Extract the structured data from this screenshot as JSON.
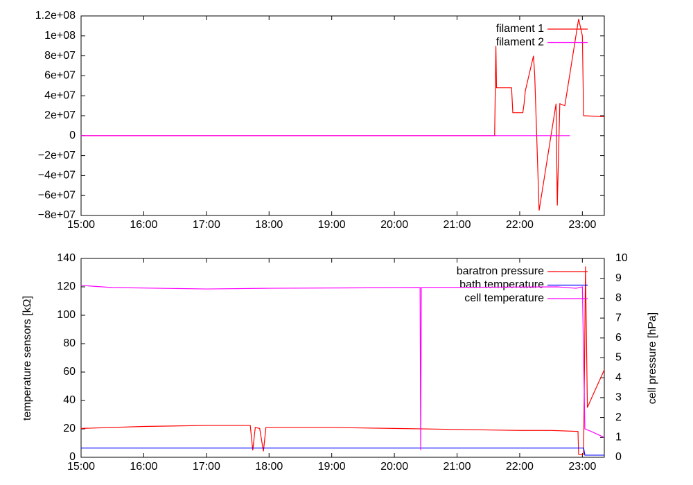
{
  "chart_data": [
    {
      "type": "line",
      "xlim": [
        15,
        23.35
      ],
      "xticks": [
        {
          "value": 15,
          "label": "15:00"
        },
        {
          "value": 16,
          "label": "16:00"
        },
        {
          "value": 17,
          "label": "17:00"
        },
        {
          "value": 18,
          "label": "18:00"
        },
        {
          "value": 19,
          "label": "19:00"
        },
        {
          "value": 20,
          "label": "20:00"
        },
        {
          "value": 21,
          "label": "21:00"
        },
        {
          "value": 22,
          "label": "22:00"
        },
        {
          "value": 23,
          "label": "23:00"
        }
      ],
      "ylim": [
        -80000000,
        120000000
      ],
      "yticks": [
        {
          "value": -80000000,
          "label": "−8e+07"
        },
        {
          "value": -60000000,
          "label": "−6e+07"
        },
        {
          "value": -40000000,
          "label": "−4e+07"
        },
        {
          "value": -20000000,
          "label": "−2e+07"
        },
        0,
        {
          "value": 20000000,
          "label": "2e+07"
        },
        {
          "value": 40000000,
          "label": "4e+07"
        },
        {
          "value": 60000000,
          "label": "6e+07"
        },
        {
          "value": 80000000,
          "label": "8e+07"
        },
        {
          "value": 100000000,
          "label": "1e+08"
        },
        {
          "value": 120000000,
          "label": "1.2e+08"
        }
      ],
      "legend": "upper right",
      "series": [
        {
          "name": "filament 1",
          "color": "#ff0000",
          "x": [
            15,
            21.6,
            21.62,
            21.63,
            21.65,
            21.87,
            21.89,
            22.05,
            22.07,
            22.09,
            22.22,
            22.24,
            22.31,
            22.58,
            22.6,
            22.64,
            22.72,
            22.94,
            23.0,
            23.02,
            23.35
          ],
          "values": [
            0,
            0,
            90000000,
            48000000,
            48000000,
            48000000,
            23000000,
            23000000,
            32000000,
            45000000,
            80000000,
            60000000,
            -75000000,
            32000000,
            -70000000,
            32000000,
            30000000,
            117000000,
            100000000,
            20000000,
            19000000
          ]
        },
        {
          "name": "filament 2",
          "color": "#ff00ff",
          "x": [
            15,
            22.8
          ],
          "values": [
            0,
            0
          ]
        }
      ]
    },
    {
      "type": "line",
      "ylabel": "temperature sensors [kΩ]",
      "y2label": "cell pressure [hPa]",
      "xlim": [
        15,
        23.35
      ],
      "xticks": [
        {
          "value": 15,
          "label": "15:00"
        },
        {
          "value": 16,
          "label": "16:00"
        },
        {
          "value": 17,
          "label": "17:00"
        },
        {
          "value": 18,
          "label": "18:00"
        },
        {
          "value": 19,
          "label": "19:00"
        },
        {
          "value": 20,
          "label": "20:00"
        },
        {
          "value": 21,
          "label": "21:00"
        },
        {
          "value": 22,
          "label": "22:00"
        },
        {
          "value": 23,
          "label": "23:00"
        }
      ],
      "ylim": [
        0,
        140
      ],
      "yticks": [
        0,
        20,
        40,
        60,
        80,
        100,
        120,
        140
      ],
      "y2lim": [
        0,
        10
      ],
      "y2ticks": [
        0,
        1,
        2,
        3,
        4,
        5,
        6,
        7,
        8,
        9,
        10
      ],
      "legend": "upper right",
      "series": [
        {
          "name": "baratron pressure",
          "color": "#ff0000",
          "axis": "y2",
          "x": [
            15,
            16,
            17,
            17.7,
            17.74,
            17.78,
            17.85,
            17.91,
            17.95,
            19,
            20,
            21,
            22,
            22.5,
            22.93,
            22.94,
            23.02,
            23.05,
            23.08,
            23.15,
            23.35
          ],
          "values": [
            1.45,
            1.55,
            1.6,
            1.6,
            0.35,
            1.5,
            1.45,
            0.3,
            1.5,
            1.5,
            1.45,
            1.4,
            1.35,
            1.35,
            1.3,
            0.15,
            0.15,
            9.6,
            2.5,
            3,
            4.4
          ]
        },
        {
          "name": "bath temperature",
          "color": "#0000ff",
          "x": [
            15,
            23.02,
            23.04,
            23.35
          ],
          "values": [
            6.5,
            6.5,
            1.5,
            1.5
          ]
        },
        {
          "name": "cell temperature",
          "color": "#ff00ff",
          "x": [
            15,
            15.5,
            17,
            18,
            20.41,
            20.42,
            20.43,
            22.6,
            22.9,
            23.0,
            23.04,
            23.15,
            23.35
          ],
          "values": [
            121,
            119.5,
            118.5,
            119,
            119.5,
            5,
            119.5,
            120,
            119,
            120,
            20,
            18,
            14
          ]
        }
      ]
    }
  ]
}
